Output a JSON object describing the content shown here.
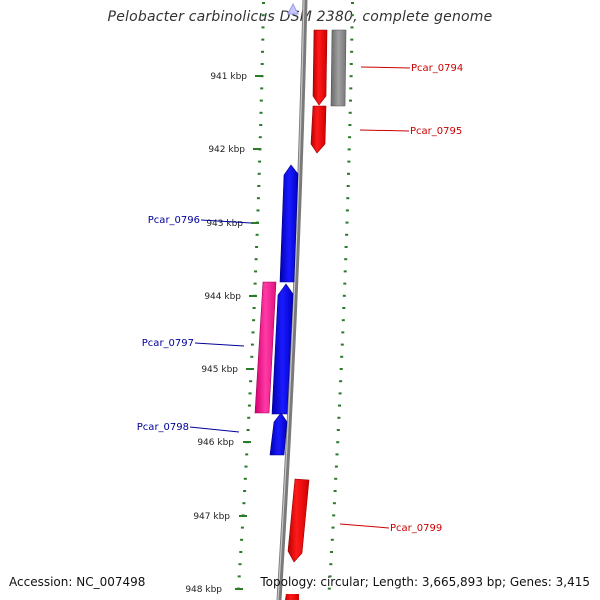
{
  "header": {
    "title": "Pelobacter carbinolicus DSM 2380, complete genome"
  },
  "footer": {
    "accession": "Accession: NC_007498",
    "summary": "Topology: circular; Length: 3,665,893 bp; Genes: 3,415"
  },
  "colors": {
    "forward_strand": "#ff0000",
    "reverse_strand": "#0000ff",
    "pink_gene": "#ff2a9a",
    "gray_gene": "#888888",
    "backbone": "#8c8c8c",
    "tick": "#2a7a2a",
    "label_red": "#cc0000",
    "label_blue": "#000099"
  },
  "ruler": {
    "labels": [
      "941 kbp",
      "942 kbp",
      "943 kbp",
      "944 kbp",
      "945 kbp",
      "946 kbp",
      "947 kbp",
      "948 kbp"
    ]
  },
  "genes": [
    {
      "id": "Pcar_0794",
      "strand": "forward"
    },
    {
      "id": "Pcar_0795",
      "strand": "forward"
    },
    {
      "id": "Pcar_0796",
      "strand": "reverse"
    },
    {
      "id": "Pcar_0797",
      "strand": "reverse"
    },
    {
      "id": "Pcar_0798",
      "strand": "reverse"
    },
    {
      "id": "Pcar_0799",
      "strand": "forward"
    }
  ]
}
